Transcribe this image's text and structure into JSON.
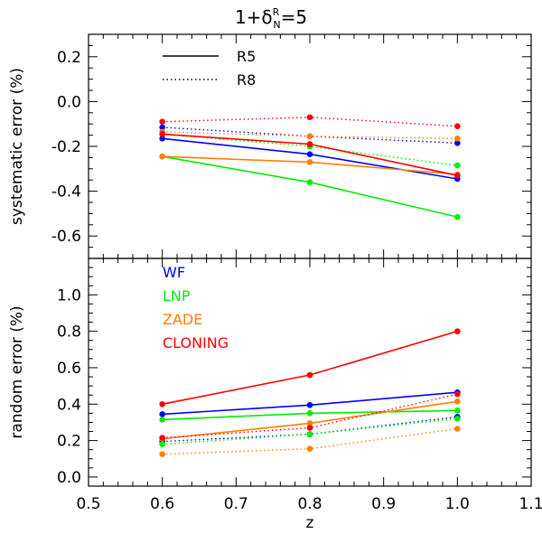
{
  "chart_data": [
    {
      "type": "line",
      "panel": "top",
      "title": "1+δ^R_N=5",
      "xlabel": "",
      "ylabel": "systematic error (%)",
      "xlim": [
        0.5,
        1.1
      ],
      "ylim": [
        -0.7,
        0.3
      ],
      "yticks": [
        -0.6,
        -0.4,
        -0.2,
        0.0,
        0.2
      ],
      "ytick_labels": [
        "-0.6",
        "-0.4",
        "-0.2",
        "0.0",
        "0.2"
      ],
      "x": [
        0.6,
        0.8,
        1.0
      ],
      "linestyle_legend": [
        {
          "label": "R5",
          "style": "solid"
        },
        {
          "label": "R8",
          "style": "dotted"
        }
      ],
      "series": [
        {
          "name": "WF",
          "run": "R5",
          "color": "#0000ff",
          "style": "solid",
          "values": [
            -0.165,
            -0.235,
            -0.345
          ]
        },
        {
          "name": "WF",
          "run": "R8",
          "color": "#0000ff",
          "style": "dotted",
          "values": [
            -0.115,
            -0.155,
            -0.185
          ]
        },
        {
          "name": "LNP",
          "run": "R5",
          "color": "#00ee00",
          "style": "solid",
          "values": [
            -0.245,
            -0.36,
            -0.515
          ]
        },
        {
          "name": "LNP",
          "run": "R8",
          "color": "#00ee00",
          "style": "dotted",
          "values": [
            -0.145,
            -0.2,
            -0.285
          ]
        },
        {
          "name": "ZADE",
          "run": "R5",
          "color": "#ff8000",
          "style": "solid",
          "values": [
            -0.245,
            -0.27,
            -0.325
          ]
        },
        {
          "name": "ZADE",
          "run": "R8",
          "color": "#ff8000",
          "style": "dotted",
          "values": [
            -0.135,
            -0.155,
            -0.165
          ]
        },
        {
          "name": "CLONING",
          "run": "R5",
          "color": "#ff0000",
          "style": "solid",
          "values": [
            -0.145,
            -0.19,
            -0.33
          ]
        },
        {
          "name": "CLONING",
          "run": "R8",
          "color": "#ff0000",
          "style": "dotted",
          "values": [
            -0.09,
            -0.07,
            -0.11
          ]
        }
      ]
    },
    {
      "type": "line",
      "panel": "bottom",
      "xlabel": "z",
      "ylabel": "random error (%)",
      "xlim": [
        0.5,
        1.1
      ],
      "ylim": [
        -0.05,
        1.2
      ],
      "xticks": [
        0.5,
        0.6,
        0.7,
        0.8,
        0.9,
        1.0,
        1.1
      ],
      "xtick_labels": [
        "0.5",
        "0.6",
        "0.7",
        "0.8",
        "0.9",
        "1.0",
        "1.1"
      ],
      "yticks": [
        0.0,
        0.2,
        0.4,
        0.6,
        0.8,
        1.0
      ],
      "ytick_labels": [
        "0.0",
        "0.2",
        "0.4",
        "0.6",
        "0.8",
        "1.0"
      ],
      "x": [
        0.6,
        0.8,
        1.0
      ],
      "color_legend": [
        {
          "label": "WF",
          "color": "#0000ff"
        },
        {
          "label": "LNP",
          "color": "#00ee00"
        },
        {
          "label": "ZADE",
          "color": "#ff8000"
        },
        {
          "label": "CLONING",
          "color": "#ff0000"
        }
      ],
      "series": [
        {
          "name": "WF",
          "run": "R5",
          "color": "#0000ff",
          "style": "solid",
          "values": [
            0.345,
            0.395,
            0.465
          ]
        },
        {
          "name": "WF",
          "run": "R8",
          "color": "#0000ff",
          "style": "dotted",
          "values": [
            0.195,
            0.235,
            0.33
          ]
        },
        {
          "name": "LNP",
          "run": "R5",
          "color": "#00ee00",
          "style": "solid",
          "values": [
            0.315,
            0.35,
            0.365
          ]
        },
        {
          "name": "LNP",
          "run": "R8",
          "color": "#00ee00",
          "style": "dotted",
          "values": [
            0.18,
            0.235,
            0.32
          ]
        },
        {
          "name": "ZADE",
          "run": "R5",
          "color": "#ff8000",
          "style": "solid",
          "values": [
            0.21,
            0.295,
            0.415
          ]
        },
        {
          "name": "ZADE",
          "run": "R8",
          "color": "#ff8000",
          "style": "dotted",
          "values": [
            0.125,
            0.155,
            0.265
          ]
        },
        {
          "name": "CLONING",
          "run": "R5",
          "color": "#ff0000",
          "style": "solid",
          "values": [
            0.4,
            0.56,
            0.8
          ]
        },
        {
          "name": "CLONING",
          "run": "R8",
          "color": "#ff0000",
          "style": "dotted",
          "values": [
            0.215,
            0.27,
            0.455
          ]
        }
      ]
    }
  ],
  "title": {
    "prefix": "1+δ",
    "sup": "R",
    "sub": "N",
    "suffix": "=5"
  }
}
